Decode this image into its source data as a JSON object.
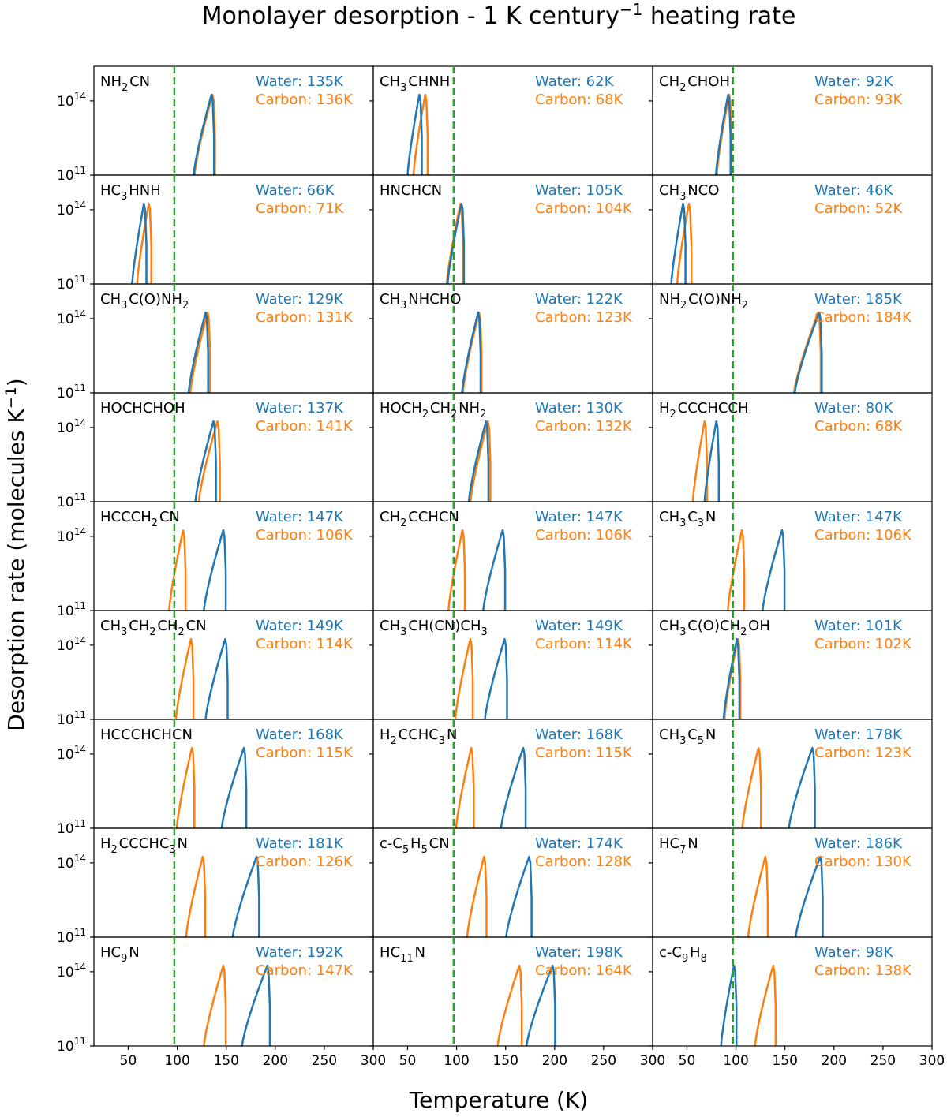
{
  "chart_data": {
    "type": "line",
    "title": "Monolayer desorption - 1 K century",
    "title_superscript": "−1",
    "title_suffix": " heating rate",
    "xlabel": "Temperature (K)",
    "ylabel": "Desorption rate (molecules K",
    "ylabel_superscript": "−1",
    "ylabel_suffix": ")",
    "xlim": [
      15,
      300
    ],
    "xticks": [
      50,
      100,
      150,
      200,
      250,
      300
    ],
    "ylim_log10": [
      11,
      15.4
    ],
    "yticks": [
      {
        "base": "10",
        "exp": "14"
      },
      {
        "base": "10",
        "exp": "11"
      }
    ],
    "reference_line_x": 97,
    "series_colors": {
      "water": "#1f77b4",
      "carbon": "#ff7f0e",
      "reference": "#2ca02c"
    },
    "water_label": "Water: ",
    "carbon_label": "Carbon: ",
    "unit": "K",
    "panel_grid": {
      "rows": 9,
      "cols": 3
    },
    "panels": [
      {
        "name": [
          "NH",
          {
            "sub": "2"
          },
          "CN"
        ],
        "water": 135,
        "carbon": 136
      },
      {
        "name": [
          "CH",
          {
            "sub": "3"
          },
          "CHNH"
        ],
        "water": 62,
        "carbon": 68
      },
      {
        "name": [
          "CH",
          {
            "sub": "2"
          },
          "CHOH"
        ],
        "water": 92,
        "carbon": 93
      },
      {
        "name": [
          "HC",
          {
            "sub": "3"
          },
          "HNH"
        ],
        "water": 66,
        "carbon": 71
      },
      {
        "name": [
          "HNCHCN"
        ],
        "water": 105,
        "carbon": 104
      },
      {
        "name": [
          "CH",
          {
            "sub": "3"
          },
          "NCO"
        ],
        "water": 46,
        "carbon": 52
      },
      {
        "name": [
          "CH",
          {
            "sub": "3"
          },
          "C(O)NH",
          {
            "sub": "2"
          }
        ],
        "water": 129,
        "carbon": 131
      },
      {
        "name": [
          "CH",
          {
            "sub": "3"
          },
          "NHCHO"
        ],
        "water": 122,
        "carbon": 123
      },
      {
        "name": [
          "NH",
          {
            "sub": "2"
          },
          "C(O)NH",
          {
            "sub": "2"
          }
        ],
        "water": 185,
        "carbon": 184
      },
      {
        "name": [
          "HOCHCHOH"
        ],
        "water": 137,
        "carbon": 141
      },
      {
        "name": [
          "HOCH",
          {
            "sub": "2"
          },
          "CH",
          {
            "sub": "2"
          },
          "NH",
          {
            "sub": "2"
          }
        ],
        "water": 130,
        "carbon": 132
      },
      {
        "name": [
          "H",
          {
            "sub": "2"
          },
          "CCCHCCH"
        ],
        "water": 80,
        "carbon": 68
      },
      {
        "name": [
          "HCCCH",
          {
            "sub": "2"
          },
          "CN"
        ],
        "water": 147,
        "carbon": 106
      },
      {
        "name": [
          "CH",
          {
            "sub": "2"
          },
          "CCHCN"
        ],
        "water": 147,
        "carbon": 106
      },
      {
        "name": [
          "CH",
          {
            "sub": "3"
          },
          "C",
          {
            "sub": "3"
          },
          "N"
        ],
        "water": 147,
        "carbon": 106
      },
      {
        "name": [
          "CH",
          {
            "sub": "3"
          },
          "CH",
          {
            "sub": "2"
          },
          "CH",
          {
            "sub": "2"
          },
          "CN"
        ],
        "water": 149,
        "carbon": 114
      },
      {
        "name": [
          "CH",
          {
            "sub": "3"
          },
          "CH(CN)CH",
          {
            "sub": "3"
          }
        ],
        "water": 149,
        "carbon": 114
      },
      {
        "name": [
          "CH",
          {
            "sub": "3"
          },
          "C(O)CH",
          {
            "sub": "2"
          },
          "OH"
        ],
        "water": 101,
        "carbon": 102
      },
      {
        "name": [
          "HCCCHCHCN"
        ],
        "water": 168,
        "carbon": 115
      },
      {
        "name": [
          "H",
          {
            "sub": "2"
          },
          "CCHC",
          {
            "sub": "3"
          },
          "N"
        ],
        "water": 168,
        "carbon": 115
      },
      {
        "name": [
          "CH",
          {
            "sub": "3"
          },
          "C",
          {
            "sub": "5"
          },
          "N"
        ],
        "water": 178,
        "carbon": 123
      },
      {
        "name": [
          "H",
          {
            "sub": "2"
          },
          "CCCHC",
          {
            "sub": "3"
          },
          "N"
        ],
        "water": 181,
        "carbon": 126
      },
      {
        "name": [
          "c-C",
          {
            "sub": "5"
          },
          "H",
          {
            "sub": "5"
          },
          "CN"
        ],
        "water": 174,
        "carbon": 128
      },
      {
        "name": [
          "HC",
          {
            "sub": "7"
          },
          "N"
        ],
        "water": 186,
        "carbon": 130
      },
      {
        "name": [
          "HC",
          {
            "sub": "9"
          },
          "N"
        ],
        "water": 192,
        "carbon": 147
      },
      {
        "name": [
          "HC",
          {
            "sub": "11"
          },
          "N"
        ],
        "water": 198,
        "carbon": 164
      },
      {
        "name": [
          "c-C",
          {
            "sub": "9"
          },
          "H",
          {
            "sub": "8"
          }
        ],
        "water": 98,
        "carbon": 138
      }
    ]
  }
}
